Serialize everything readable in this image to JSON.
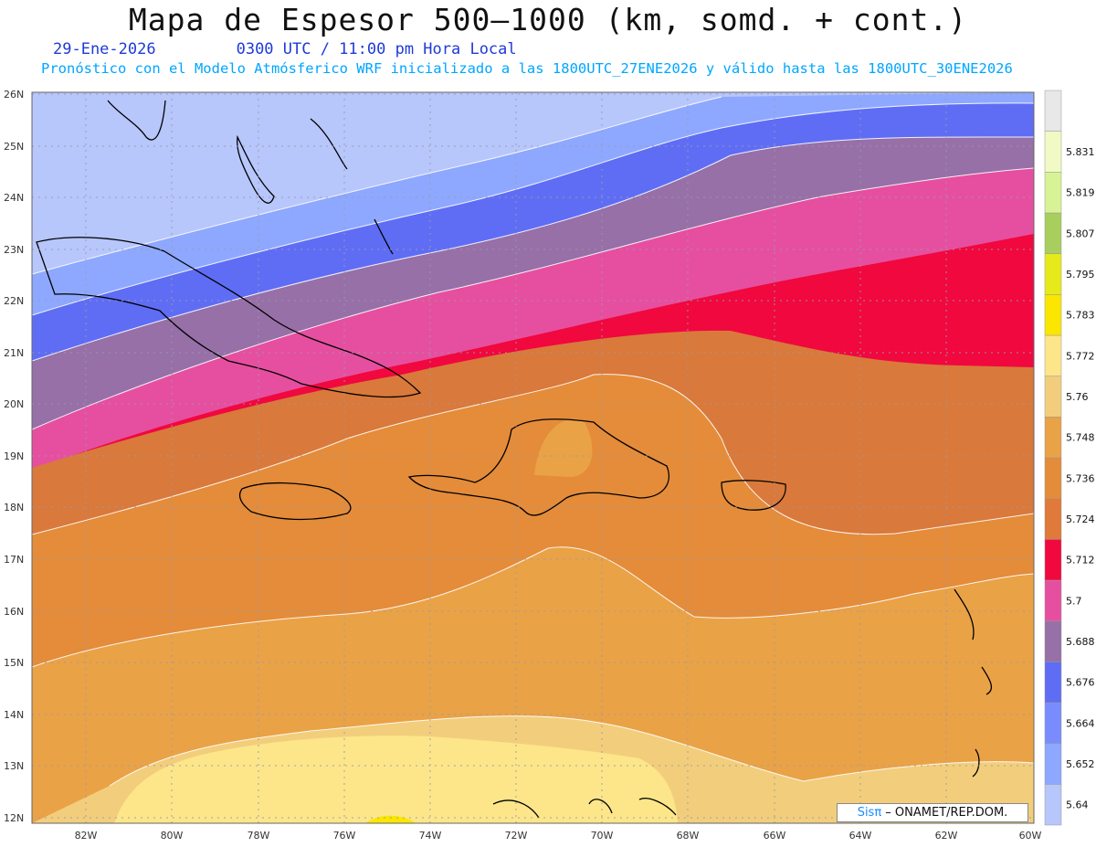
{
  "header": {
    "title": "Mapa de Espesor 500—1000 (km, somd. + cont.)",
    "date": "29-Ene-2026",
    "time": "0300 UTC / 11:00 pm Hora Local",
    "info": "Pronóstico con el Modelo Atmósferico WRF inicializado a las 1800UTC_27ENE2026 y válido hasta las  1800UTC_30ENE2026"
  },
  "map": {
    "lat_labels": [
      "26N",
      "25N",
      "24N",
      "23N",
      "22N",
      "21N",
      "20N",
      "19N",
      "18N",
      "17N",
      "16N",
      "15N",
      "14N",
      "13N",
      "12N"
    ],
    "lon_labels": [
      "82W",
      "80W",
      "78W",
      "76W",
      "74W",
      "72W",
      "70W",
      "68W",
      "66W",
      "64W",
      "62W",
      "60W"
    ]
  },
  "colorbar": {
    "colors": [
      "#b7c6fb",
      "#8ea8ff",
      "#7a8cfd",
      "#5f6df5",
      "#9770a8",
      "#e64fa0",
      "#f0083f",
      "#e07a3a",
      "#e48c3a",
      "#eaa247",
      "#f2ce7c",
      "#fde68a",
      "#fbe600",
      "#e7ea1a",
      "#a8cf5e",
      "#d8f396",
      "#f1fac4",
      "#e8e8e8"
    ],
    "labels": [
      "5.64",
      "5.652",
      "5.664",
      "5.676",
      "5.688",
      "5.7",
      "5.712",
      "5.724",
      "5.736",
      "5.748",
      "5.76",
      "5.772",
      "5.783",
      "5.795",
      "5.807",
      "5.819",
      "5.831"
    ]
  },
  "credit": {
    "brand": "Sisπ",
    "text": " – ONAMET/REP.DOM."
  }
}
